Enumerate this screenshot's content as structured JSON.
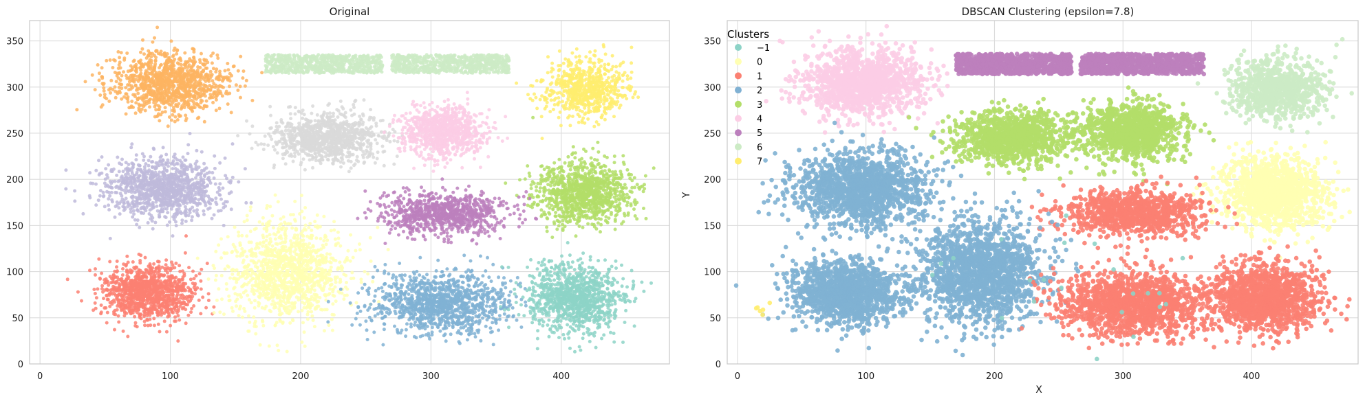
{
  "figure": {
    "colors": {
      "background": "#ffffff",
      "plot_background": "#ffffff",
      "grid": "#dcdcdc",
      "spine": "#c8c8c8",
      "text": "#1a1a1a"
    }
  },
  "chart_data": [
    {
      "type": "scatter",
      "title": "Original",
      "xlabel": "",
      "ylabel": "",
      "xlim": [
        -8,
        483
      ],
      "ylim": [
        0,
        372
      ],
      "xticks": [
        0,
        100,
        200,
        300,
        400
      ],
      "yticks": [
        0,
        50,
        100,
        150,
        200,
        250,
        300,
        350
      ],
      "grid": true,
      "legend": null,
      "clusters": [
        {
          "color": "#fdb462",
          "center": [
            100,
            305
          ],
          "spread": [
            22,
            16
          ],
          "shape": "gauss",
          "n": 1100
        },
        {
          "color": "#ccebc5",
          "center": [
            218,
            325
          ],
          "spread": [
            45,
            10
          ],
          "shape": "uniform",
          "n": 700
        },
        {
          "color": "#ccebc5",
          "center": [
            315,
            325
          ],
          "spread": [
            45,
            10
          ],
          "shape": "uniform",
          "n": 700
        },
        {
          "color": "#ffed6f",
          "center": [
            420,
            298
          ],
          "spread": [
            16,
            16
          ],
          "shape": "gauss",
          "n": 700
        },
        {
          "color": "#d9d9d9",
          "center": [
            220,
            245
          ],
          "spread": [
            21,
            13
          ],
          "shape": "gauss",
          "n": 1000
        },
        {
          "color": "#fccde5",
          "center": [
            310,
            252
          ],
          "spread": [
            16,
            13
          ],
          "shape": "gauss",
          "n": 900
        },
        {
          "color": "#bebada",
          "center": [
            95,
            190
          ],
          "spread": [
            22,
            17
          ],
          "shape": "gauss",
          "n": 1100
        },
        {
          "color": "#b3de69",
          "center": [
            418,
            185
          ],
          "spread": [
            18,
            17
          ],
          "shape": "gauss",
          "n": 1100
        },
        {
          "color": "#bc80bd",
          "center": [
            310,
            163
          ],
          "spread": [
            24,
            11
          ],
          "shape": "gauss",
          "n": 900
        },
        {
          "color": "#fb8072",
          "center": [
            82,
            78
          ],
          "spread": [
            17,
            15
          ],
          "shape": "gauss",
          "n": 1100
        },
        {
          "color": "#ffffb3",
          "center": [
            190,
            100
          ],
          "spread": [
            22,
            26
          ],
          "shape": "gauss",
          "n": 1300
        },
        {
          "color": "#80b1d3",
          "center": [
            308,
            65
          ],
          "spread": [
            26,
            16
          ],
          "shape": "gauss",
          "n": 1200
        },
        {
          "color": "#8dd3c7",
          "center": [
            410,
            72
          ],
          "spread": [
            18,
            18
          ],
          "shape": "gauss",
          "n": 1100
        }
      ]
    },
    {
      "type": "scatter",
      "title": "DBSCAN Clustering (epsilon=7.8)",
      "xlabel": "X",
      "ylabel": "Y",
      "xlim": [
        -8,
        483
      ],
      "ylim": [
        0,
        372
      ],
      "xticks": [
        0,
        100,
        200,
        300,
        400
      ],
      "yticks": [
        0,
        50,
        100,
        150,
        200,
        250,
        300,
        350
      ],
      "grid": true,
      "legend": {
        "title": "Clusters",
        "placement": "top-left",
        "entries": [
          {
            "label": "−1",
            "color": "#8dd3c7"
          },
          {
            "label": "0",
            "color": "#ffffb3"
          },
          {
            "label": "1",
            "color": "#fb8072"
          },
          {
            "label": "2",
            "color": "#80b1d3"
          },
          {
            "label": "3",
            "color": "#b3de69"
          },
          {
            "label": "4",
            "color": "#fccde5"
          },
          {
            "label": "5",
            "color": "#bc80bd"
          },
          {
            "label": "6",
            "color": "#ccebc5"
          },
          {
            "label": "7",
            "color": "#ffed6f"
          }
        ]
      },
      "clusters": [
        {
          "color": "#fccde5",
          "center": [
            97,
            305
          ],
          "spread": [
            23,
            17
          ],
          "shape": "gauss",
          "n": 1300
        },
        {
          "color": "#bc80bd",
          "center": [
            215,
            325
          ],
          "spread": [
            45,
            11
          ],
          "shape": "uniform",
          "n": 900
        },
        {
          "color": "#bc80bd",
          "center": [
            315,
            325
          ],
          "spread": [
            48,
            11
          ],
          "shape": "uniform",
          "n": 900
        },
        {
          "color": "#ccebc5",
          "center": [
            420,
            298
          ],
          "spread": [
            18,
            17
          ],
          "shape": "gauss",
          "n": 900
        },
        {
          "color": "#b3de69",
          "center": [
            215,
            245
          ],
          "spread": [
            22,
            14
          ],
          "shape": "gauss",
          "n": 1100
        },
        {
          "color": "#b3de69",
          "center": [
            308,
            252
          ],
          "spread": [
            19,
            15
          ],
          "shape": "gauss",
          "n": 1100
        },
        {
          "color": "#80b1d3",
          "center": [
            97,
            190
          ],
          "spread": [
            25,
            20
          ],
          "shape": "gauss",
          "n": 1400
        },
        {
          "color": "#ffffb3",
          "center": [
            418,
            185
          ],
          "spread": [
            20,
            19
          ],
          "shape": "gauss",
          "n": 1300
        },
        {
          "color": "#fb8072",
          "center": [
            310,
            163
          ],
          "spread": [
            26,
            12
          ],
          "shape": "gauss",
          "n": 1000
        },
        {
          "color": "#80b1d3",
          "center": [
            85,
            78
          ],
          "spread": [
            21,
            17
          ],
          "shape": "gauss",
          "n": 1300
        },
        {
          "color": "#80b1d3",
          "center": [
            190,
            100
          ],
          "spread": [
            24,
            28
          ],
          "shape": "gauss",
          "n": 1700
        },
        {
          "color": "#fb8072",
          "center": [
            308,
            65
          ],
          "spread": [
            28,
            17
          ],
          "shape": "gauss",
          "n": 1400
        },
        {
          "color": "#fb8072",
          "center": [
            410,
            72
          ],
          "spread": [
            21,
            18
          ],
          "shape": "gauss",
          "n": 1300
        },
        {
          "color": "#8dd3c7",
          "center": [
            250,
            90
          ],
          "spread": [
            100,
            90
          ],
          "shape": "uniform",
          "n": 22
        },
        {
          "color": "#ffed6f",
          "center": [
            20,
            60
          ],
          "spread": [
            3,
            4
          ],
          "shape": "gauss",
          "n": 6
        }
      ]
    }
  ]
}
